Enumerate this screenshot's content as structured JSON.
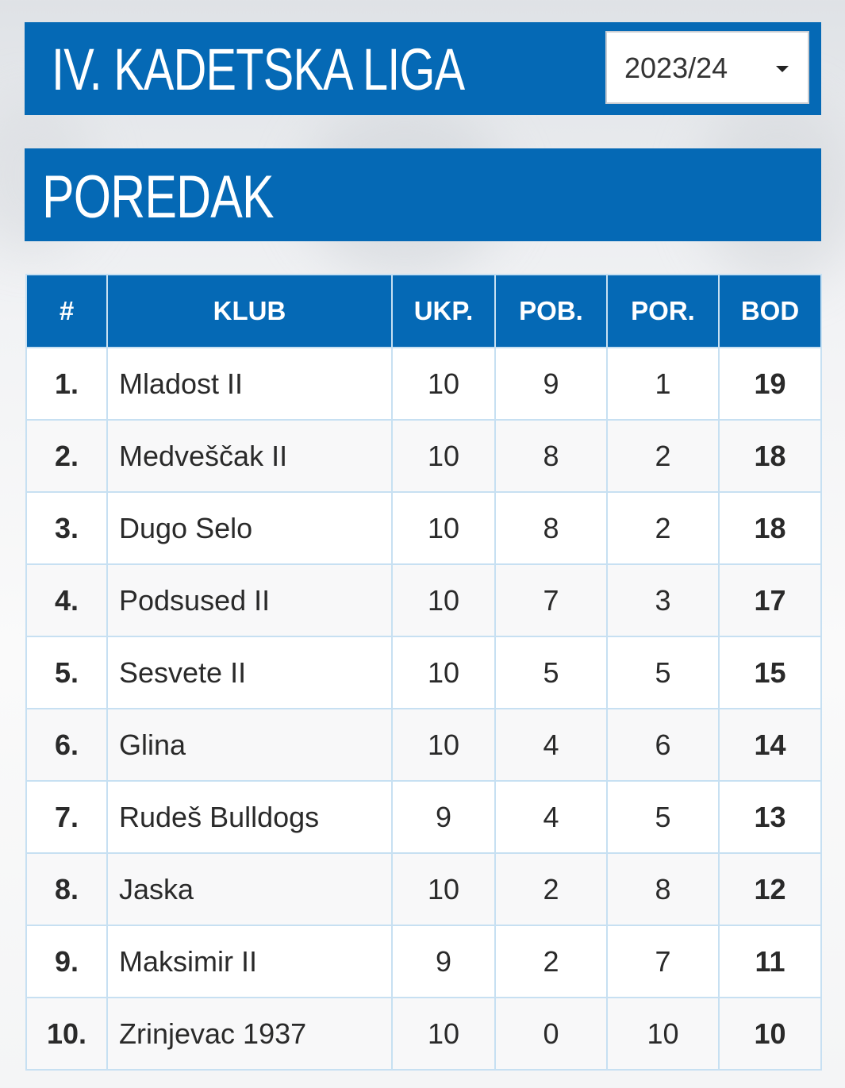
{
  "header": {
    "title": "IV. KADETSKA LIGA",
    "season": "2023/24"
  },
  "section": {
    "title": "POREDAK"
  },
  "table": {
    "columns": [
      "#",
      "KLUB",
      "UKP.",
      "POB.",
      "POR.",
      "BOD"
    ],
    "rows": [
      {
        "rank": "1.",
        "club": "Mladost II",
        "played": "10",
        "won": "9",
        "lost": "1",
        "points": "19"
      },
      {
        "rank": "2.",
        "club": "Medveščak II",
        "played": "10",
        "won": "8",
        "lost": "2",
        "points": "18"
      },
      {
        "rank": "3.",
        "club": "Dugo Selo",
        "played": "10",
        "won": "8",
        "lost": "2",
        "points": "18"
      },
      {
        "rank": "4.",
        "club": "Podsused II",
        "played": "10",
        "won": "7",
        "lost": "3",
        "points": "17"
      },
      {
        "rank": "5.",
        "club": "Sesvete II",
        "played": "10",
        "won": "5",
        "lost": "5",
        "points": "15"
      },
      {
        "rank": "6.",
        "club": "Glina",
        "played": "10",
        "won": "4",
        "lost": "6",
        "points": "14"
      },
      {
        "rank": "7.",
        "club": "Rudeš Bulldogs",
        "played": "9",
        "won": "4",
        "lost": "5",
        "points": "13"
      },
      {
        "rank": "8.",
        "club": "Jaska",
        "played": "10",
        "won": "2",
        "lost": "8",
        "points": "12"
      },
      {
        "rank": "9.",
        "club": "Maksimir II",
        "played": "9",
        "won": "2",
        "lost": "7",
        "points": "11"
      },
      {
        "rank": "10.",
        "club": "Zrinjevac 1937",
        "played": "10",
        "won": "0",
        "lost": "10",
        "points": "10"
      }
    ]
  },
  "colors": {
    "brand_blue": "#0569b5",
    "grid_line": "#c7e0f2",
    "row_alt": "#f8f8f9"
  },
  "icons": {
    "season_dropdown": "caret-down-icon"
  }
}
